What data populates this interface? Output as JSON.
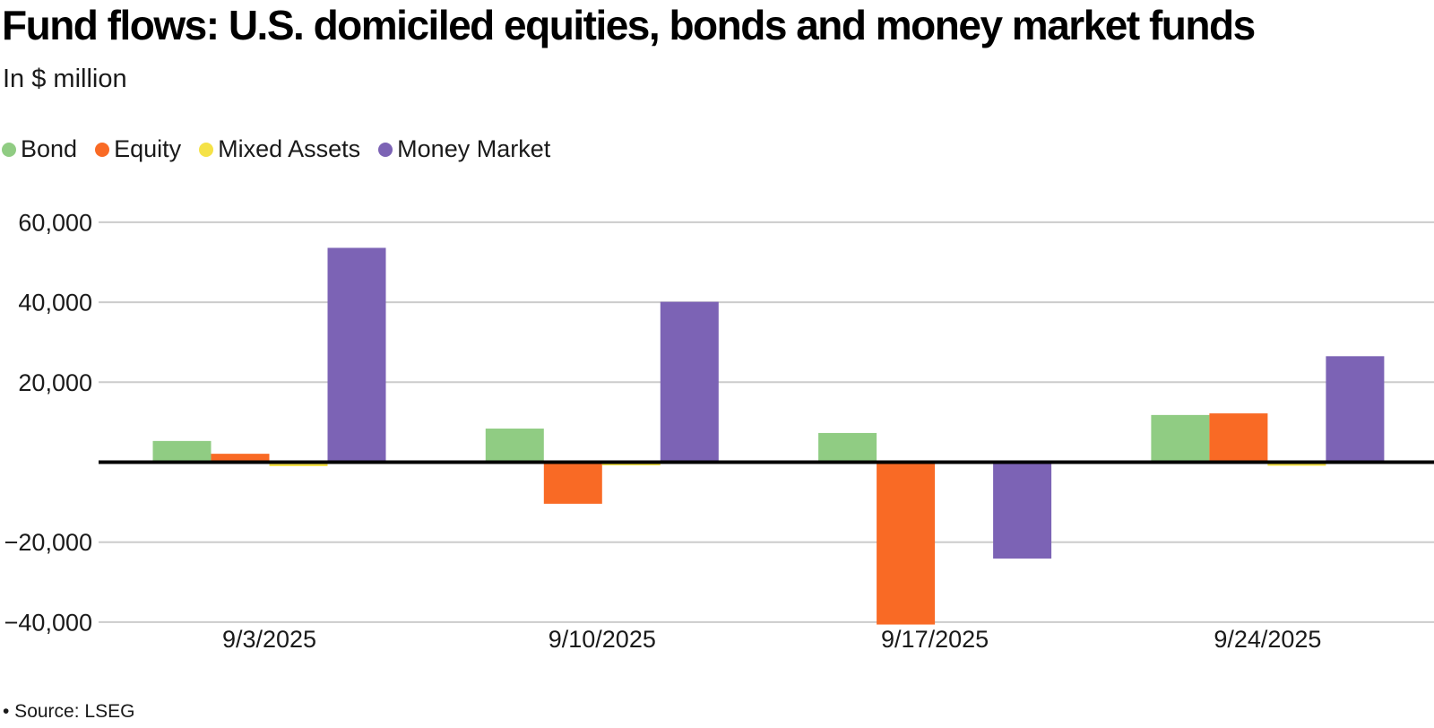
{
  "header": {
    "title": "Fund flows: U.S. domiciled equities, bonds and money market funds",
    "subtitle": "In $ million"
  },
  "legend": {
    "items": [
      {
        "label": "Bond",
        "color": "#90CC83"
      },
      {
        "label": "Equity",
        "color": "#F96A25"
      },
      {
        "label": "Mixed Assets",
        "color": "#F5E247"
      },
      {
        "label": "Money Market",
        "color": "#7C63B5"
      }
    ]
  },
  "chart_data": {
    "type": "bar",
    "title": "Fund flows: U.S. domiciled equities, bonds and money market funds",
    "subtitle": "In $ million",
    "xlabel": "",
    "ylabel": "In $ million",
    "categories": [
      "9/3/2025",
      "9/10/2025",
      "9/17/2025",
      "9/24/2025"
    ],
    "series": [
      {
        "name": "Bond",
        "color": "#90CC83",
        "values": [
          5300,
          8400,
          7300,
          11800
        ]
      },
      {
        "name": "Equity",
        "color": "#F96A25",
        "values": [
          2100,
          -10400,
          -40600,
          12200
        ]
      },
      {
        "name": "Mixed Assets",
        "color": "#F5E247",
        "values": [
          -1000,
          -800,
          -200,
          -900
        ]
      },
      {
        "name": "Money Market",
        "color": "#7C63B5",
        "values": [
          53600,
          40100,
          -24100,
          26500
        ]
      }
    ],
    "ylim": [
      -45000,
      62000
    ],
    "yticks": [
      {
        "value": 60000,
        "label": "60,000"
      },
      {
        "value": 40000,
        "label": "40,000"
      },
      {
        "value": 20000,
        "label": "20,000"
      },
      {
        "value": -20000,
        "label": "−20,000"
      },
      {
        "value": -40000,
        "label": "−40,000"
      }
    ],
    "grid": true,
    "legend_position": "top-left"
  },
  "footer": {
    "source_note": "• Source: LSEG"
  },
  "colors": {
    "background": "#FFFFFF",
    "grid_line": "#CCCCCC",
    "zero_line": "#000000",
    "text": "#1A1A1A"
  }
}
